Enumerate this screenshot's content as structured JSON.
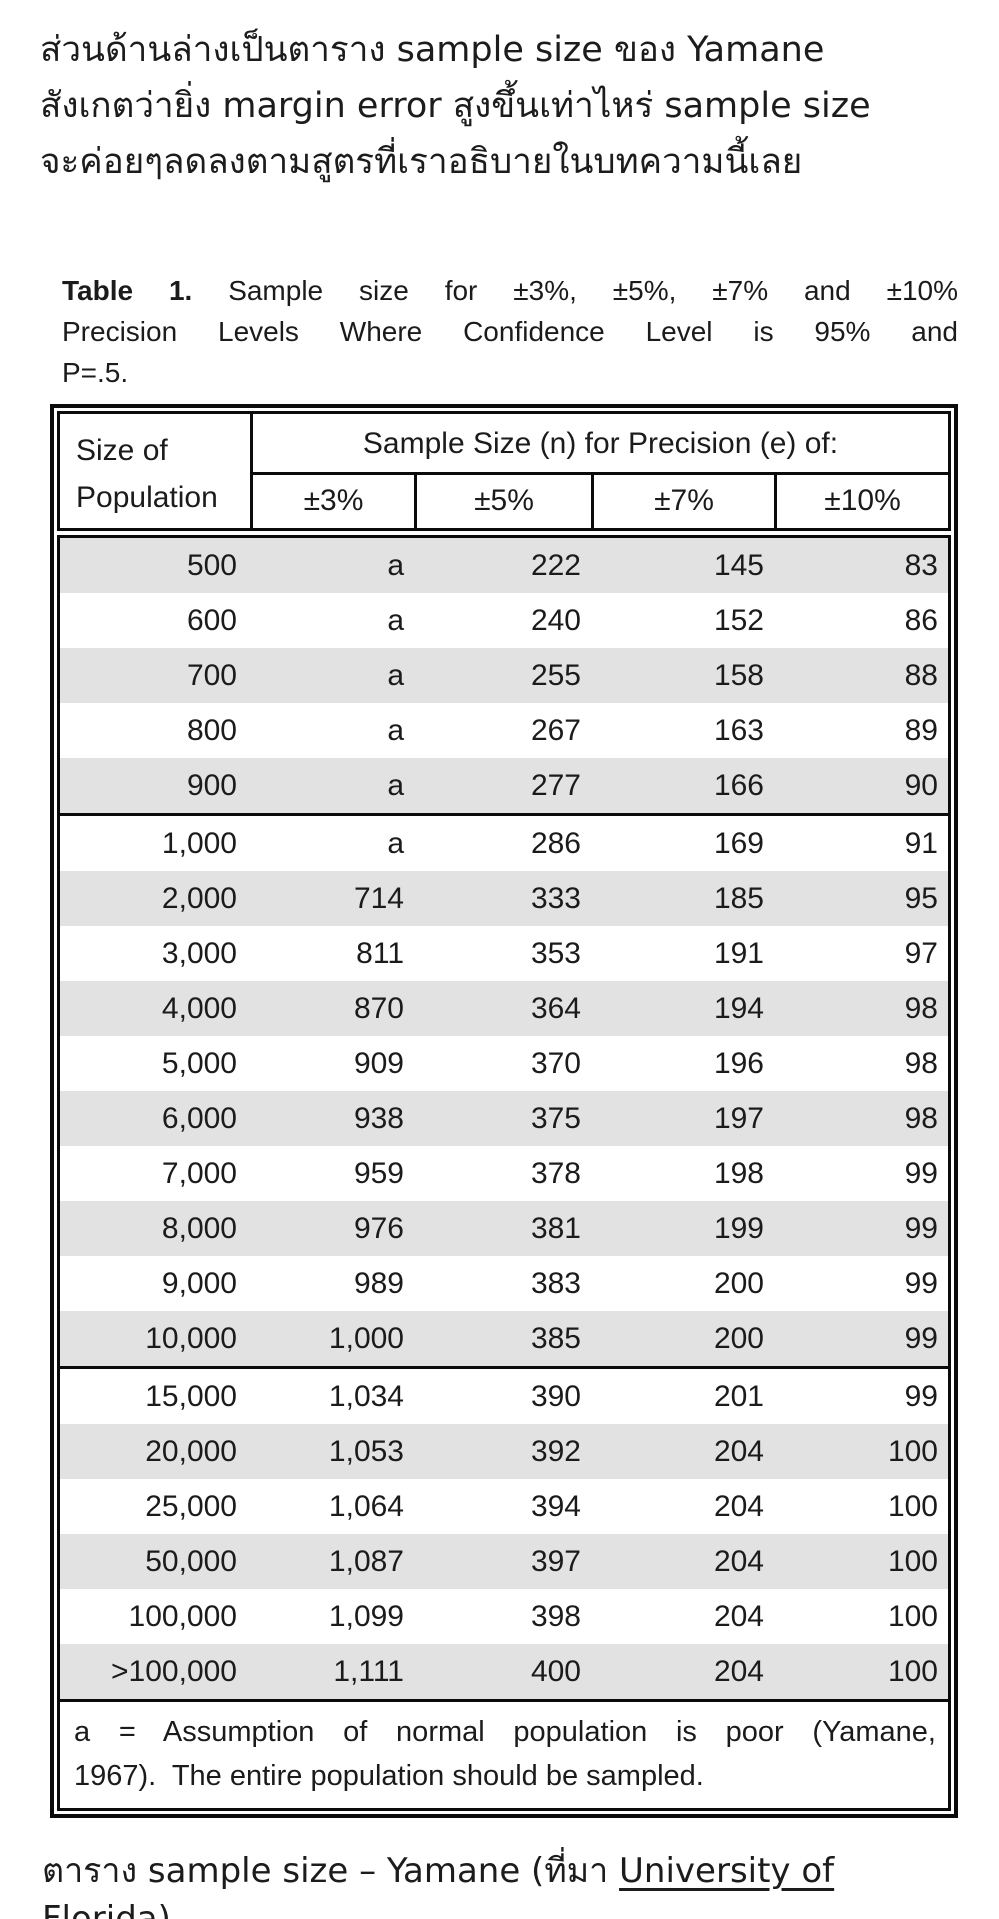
{
  "intro": {
    "lines": [
      "ส่วนด้านล่างเป็นตาราง sample size ของ Yamane",
      "สังเกตว่ายิ่ง margin error สูงขึ้นเท่าไหร่ sample size",
      "จะค่อยๆลดลงตามสูตรที่เราอธิบายในบทความนี้เลย"
    ]
  },
  "table": {
    "title": {
      "label": "Table 1.",
      "line1": "Sample size for ±3%, ±5%, ±7% and ±10%",
      "line2": "Precision Levels Where Confidence Level is 95% and",
      "line3": "P=.5."
    },
    "header": {
      "col0_line1": "Size of",
      "col0_line2": "Population",
      "span_label": "Sample Size (n) for Precision (e) of:",
      "precisions": [
        "±3%",
        "±5%",
        "±7%",
        "±10%"
      ]
    },
    "columns": [
      "Size of Population",
      "±3%",
      "±5%",
      "±7%",
      "±10%"
    ],
    "sections": [
      [
        [
          "500",
          "a",
          "222",
          "145",
          "83"
        ],
        [
          "600",
          "a",
          "240",
          "152",
          "86"
        ],
        [
          "700",
          "a",
          "255",
          "158",
          "88"
        ],
        [
          "800",
          "a",
          "267",
          "163",
          "89"
        ],
        [
          "900",
          "a",
          "277",
          "166",
          "90"
        ]
      ],
      [
        [
          "1,000",
          "a",
          "286",
          "169",
          "91"
        ],
        [
          "2,000",
          "714",
          "333",
          "185",
          "95"
        ],
        [
          "3,000",
          "811",
          "353",
          "191",
          "97"
        ],
        [
          "4,000",
          "870",
          "364",
          "194",
          "98"
        ],
        [
          "5,000",
          "909",
          "370",
          "196",
          "98"
        ],
        [
          "6,000",
          "938",
          "375",
          "197",
          "98"
        ],
        [
          "7,000",
          "959",
          "378",
          "198",
          "99"
        ],
        [
          "8,000",
          "976",
          "381",
          "199",
          "99"
        ],
        [
          "9,000",
          "989",
          "383",
          "200",
          "99"
        ],
        [
          "10,000",
          "1,000",
          "385",
          "200",
          "99"
        ]
      ],
      [
        [
          "15,000",
          "1,034",
          "390",
          "201",
          "99"
        ],
        [
          "20,000",
          "1,053",
          "392",
          "204",
          "100"
        ],
        [
          "25,000",
          "1,064",
          "394",
          "204",
          "100"
        ],
        [
          "50,000",
          "1,087",
          "397",
          "204",
          "100"
        ],
        [
          "100,000",
          "1,099",
          "398",
          "204",
          "100"
        ],
        [
          ">100,000",
          "1,111",
          "400",
          "204",
          "100"
        ]
      ]
    ],
    "footnote": {
      "line1": "a = Assumption of normal population is poor (Yamane,",
      "line2": "1967).  The entire population should be sampled."
    }
  },
  "caption": {
    "prefix": "ตาราง sample size – Yamane (ที่มา ",
    "link": "University of Florida",
    "suffix": ")"
  },
  "colors": {
    "row_shade": "#e2e2e2",
    "border": "#0b0b0b",
    "text": "#1b1b1b"
  }
}
